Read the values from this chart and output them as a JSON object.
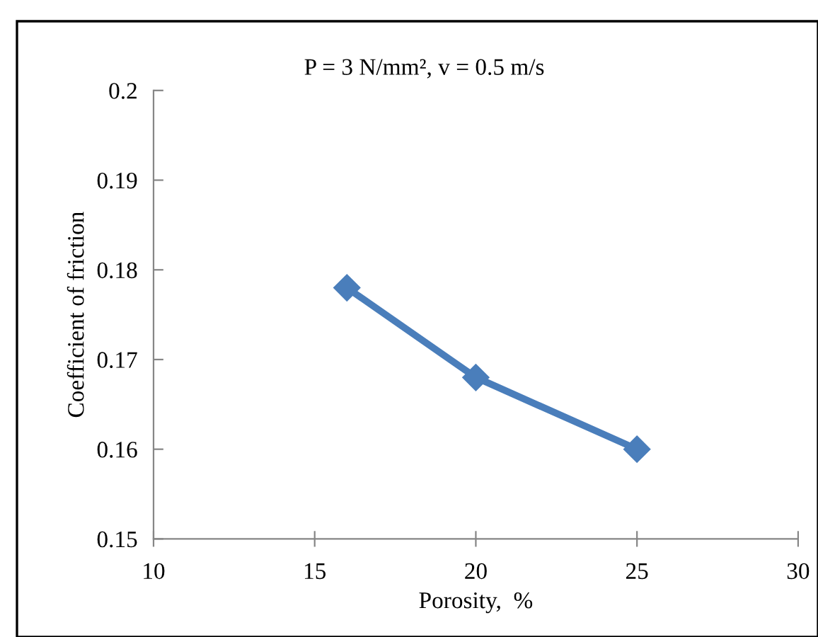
{
  "chart_data": {
    "type": "line",
    "title": "P = 3 N/mm², v = 0.5 m/s",
    "xlabel": "Porosity,  %",
    "ylabel": "Coefficient of friction",
    "x": [
      16,
      20,
      25
    ],
    "series": [
      {
        "color": "#4a7ebb",
        "values": [
          0.178,
          0.168,
          0.16
        ]
      }
    ],
    "xlim": [
      10,
      30
    ],
    "xticks": [
      10,
      15,
      20,
      25,
      30
    ],
    "ylim": [
      0.15,
      0.2
    ],
    "yticks": [
      0.15,
      0.16,
      0.17,
      0.18,
      0.19,
      0.2
    ],
    "marker": "diamond",
    "line_style": "solid",
    "grid": false
  }
}
